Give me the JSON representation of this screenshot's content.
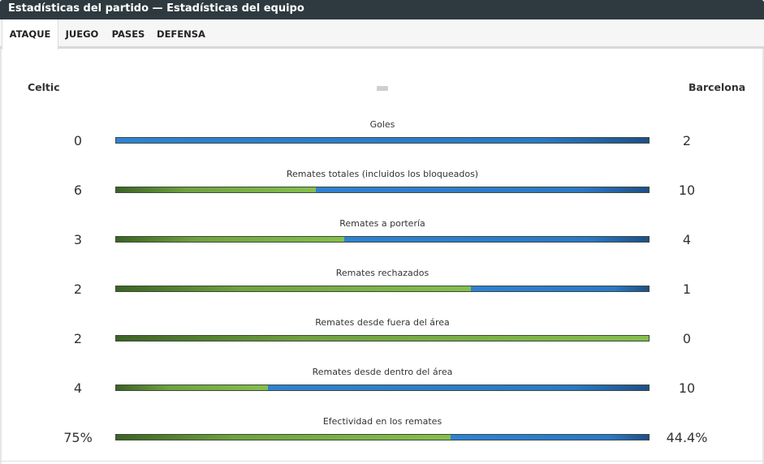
{
  "header": {
    "title": "Estadísticas del partido — Estadísticas del equipo"
  },
  "tabs": [
    {
      "label": "ATAQUE",
      "active": true
    },
    {
      "label": "JUEGO",
      "active": false
    },
    {
      "label": "PASES",
      "active": false
    },
    {
      "label": "DEFENSA",
      "active": false
    }
  ],
  "teams": {
    "home": "Celtic",
    "away": "Barcelona"
  },
  "colors": {
    "home": "#86bf4d",
    "away": "#2d7fcf",
    "header_bg": "#2e3a3f"
  },
  "stats": [
    {
      "label": "Goles",
      "home": "0",
      "away": "2",
      "home_share": 0.0
    },
    {
      "label": "Remates totales (incluidos los bloqueados)",
      "home": "6",
      "away": "10",
      "home_share": 0.375
    },
    {
      "label": "Remates a portería",
      "home": "3",
      "away": "4",
      "home_share": 0.4286
    },
    {
      "label": "Remates rechazados",
      "home": "2",
      "away": "1",
      "home_share": 0.6667
    },
    {
      "label": "Remates desde fuera del área",
      "home": "2",
      "away": "0",
      "home_share": 1.0
    },
    {
      "label": "Remates desde dentro del área",
      "home": "4",
      "away": "10",
      "home_share": 0.2857
    },
    {
      "label": "Efectividad en los remates",
      "home": "75%",
      "away": "44.4%",
      "home_share": 0.628
    }
  ]
}
